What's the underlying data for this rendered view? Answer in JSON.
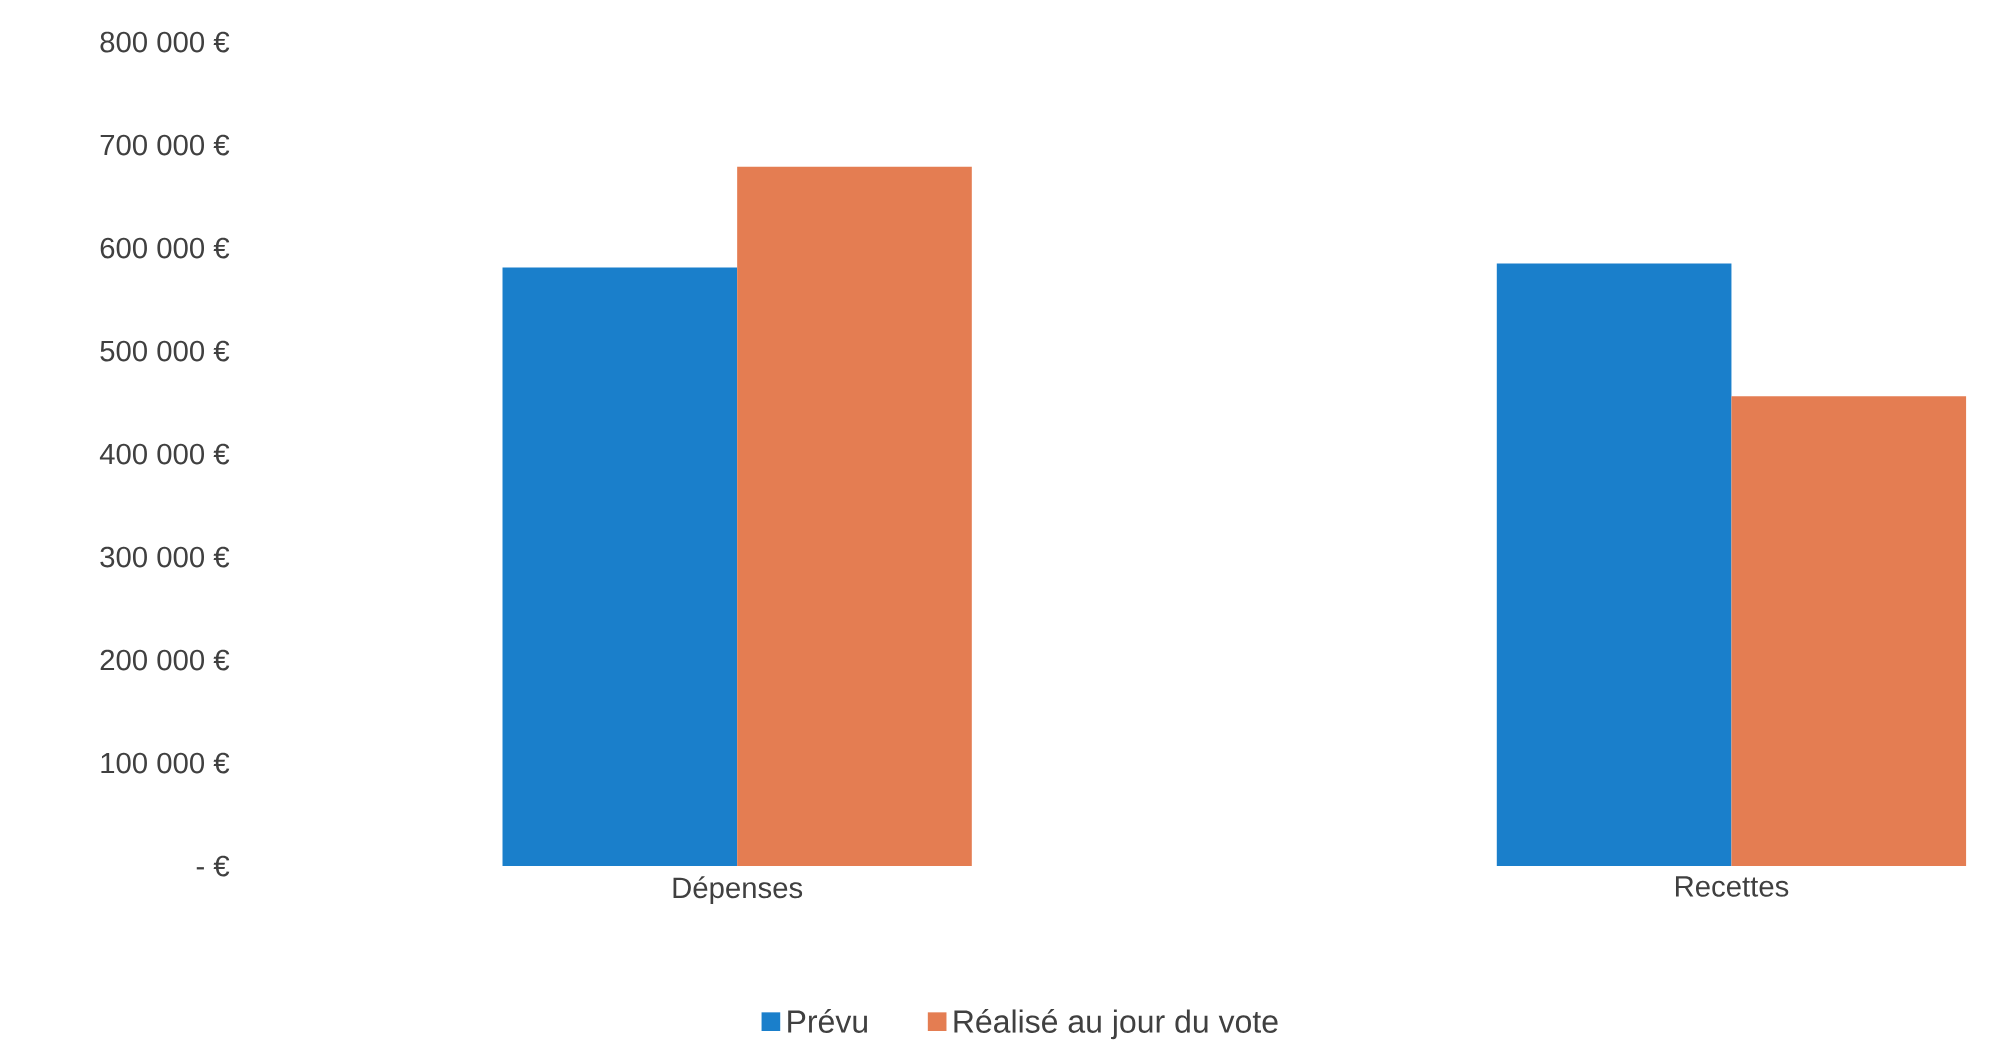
{
  "chart_data": {
    "type": "bar",
    "categories": [
      "Dépenses",
      "Recettes"
    ],
    "series": [
      {
        "name": "Prévu",
        "color": "#1a7fcb",
        "values": [
          581000,
          585000
        ]
      },
      {
        "name": "Réalisé au jour du vote",
        "color": "#e47d52",
        "values": [
          679000,
          456000
        ]
      }
    ],
    "ylim": [
      0,
      800000
    ],
    "yticks": [
      {
        "value": 0,
        "label": "- €"
      },
      {
        "value": 100000,
        "label": "100 000 €"
      },
      {
        "value": 200000,
        "label": "200 000 €"
      },
      {
        "value": 300000,
        "label": "300 000 €"
      },
      {
        "value": 400000,
        "label": "400 000 €"
      },
      {
        "value": 500000,
        "label": "500 000 €"
      },
      {
        "value": 600000,
        "label": "600 000 €"
      },
      {
        "value": 700000,
        "label": "700 000 €"
      },
      {
        "value": 800000,
        "label": "800 000 €"
      }
    ],
    "legend": "bottom"
  }
}
